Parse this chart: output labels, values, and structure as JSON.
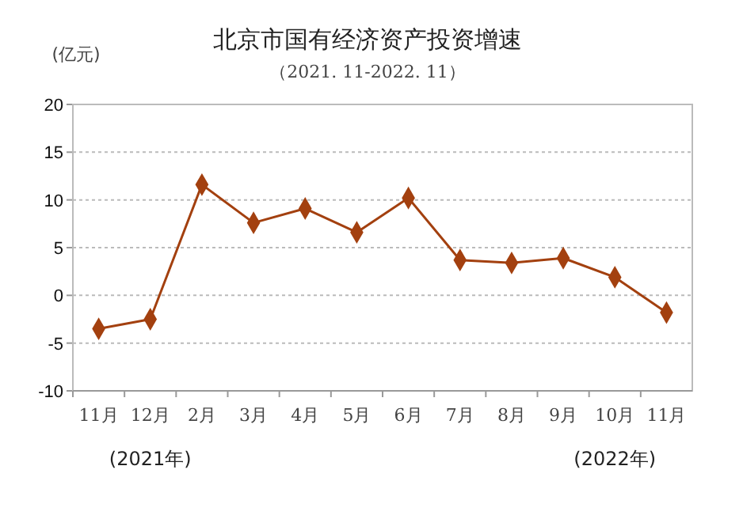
{
  "chart_data": {
    "type": "line",
    "title": "北京市国有经济资产投资增速",
    "subtitle": "（2021. 11-2022. 11）",
    "ylabel": "(亿元)",
    "categories": [
      "11月",
      "12月",
      "2月",
      "3月",
      "4月",
      "5月",
      "6月",
      "7月",
      "8月",
      "9月",
      "10月",
      "11月"
    ],
    "series": [
      {
        "color": "#a3400f",
        "values": [
          -3.5,
          -2.5,
          11.6,
          7.6,
          9.1,
          6.6,
          10.2,
          3.7,
          3.4,
          3.9,
          1.9,
          -1.8
        ]
      }
    ],
    "ylim": [
      -10,
      20
    ],
    "yticks": [
      -10,
      -5,
      0,
      5,
      10,
      15,
      20
    ],
    "grid": "y",
    "marker": "diamond",
    "annotations": [
      "(2021年)",
      "(2022年)"
    ]
  }
}
